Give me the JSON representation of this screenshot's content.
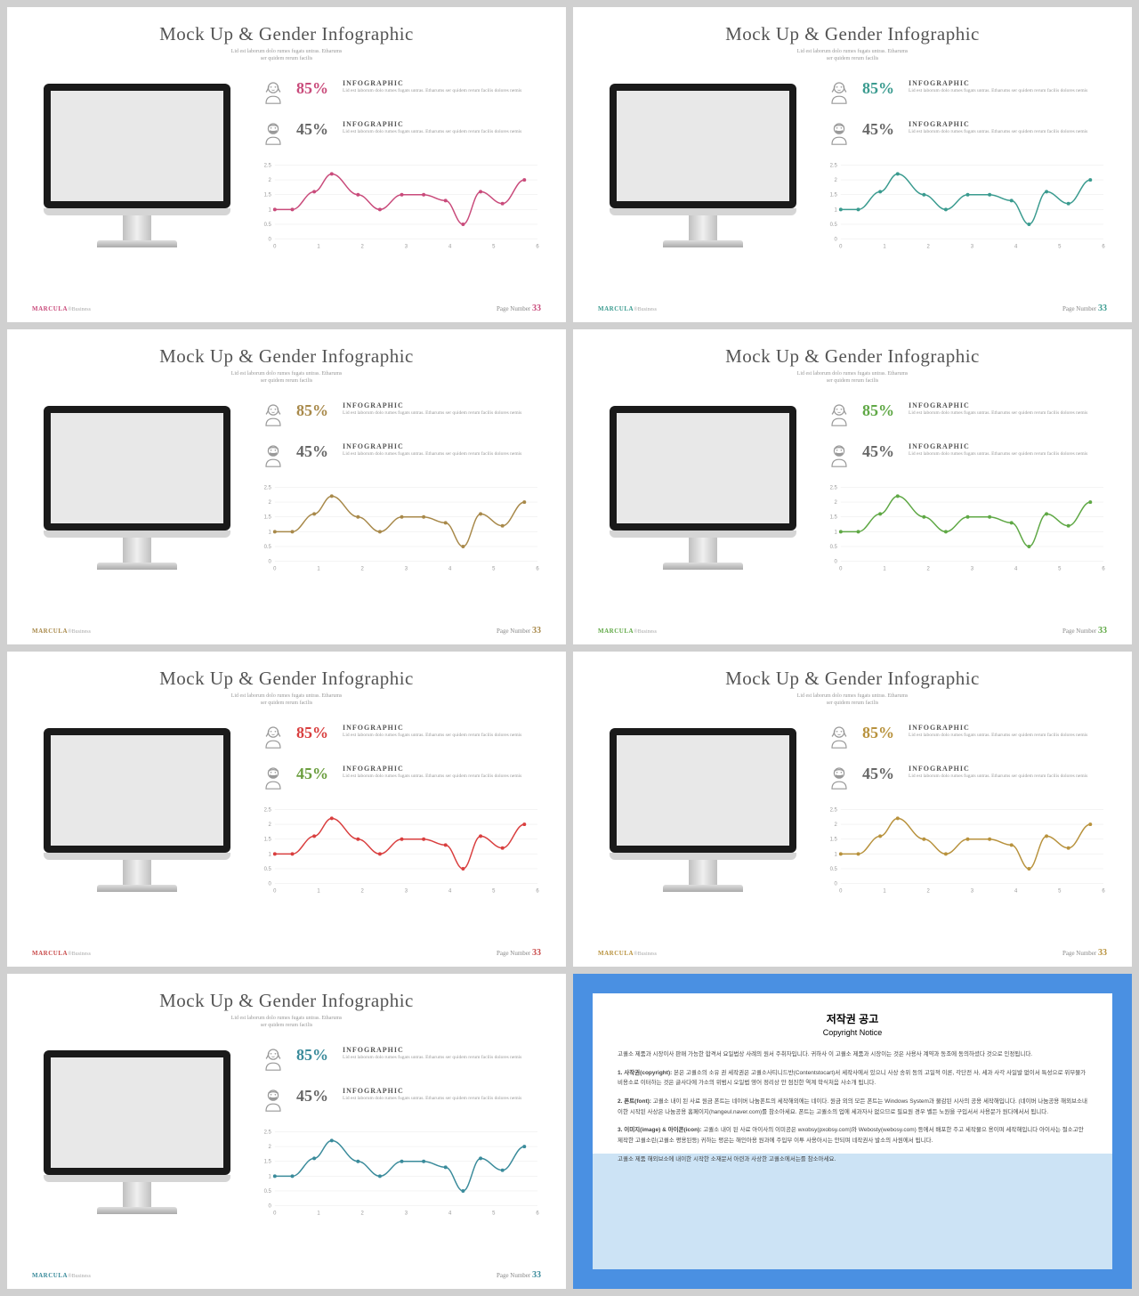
{
  "common": {
    "title": "Mock Up & Gender Infographic",
    "subtitle": "Lid est laborum dolo rumes fugats untras. Etharums\nser quidem rerum facilis",
    "stat_title": "INFOGRAPHIC",
    "stat_desc": "Lid est laborum dolo rumes fugats untras. Etharums ser quidem rerum facilis dolores nemis",
    "brand": "MARCULA",
    "brand_sub": "®Business",
    "page_label": "Page Number",
    "page_num": "33",
    "female_pct": "85%",
    "male_pct": "45%",
    "chart": {
      "xvals": [
        0,
        1,
        2,
        3,
        4,
        5,
        6
      ],
      "yticks": [
        0,
        0.5,
        1,
        1.5,
        2,
        2.5
      ],
      "points_x": [
        0,
        0.4,
        0.9,
        1.3,
        1.9,
        2.4,
        2.9,
        3.4,
        3.9,
        4.3,
        4.7,
        5.2,
        5.7
      ],
      "points_y": [
        1.0,
        1.0,
        1.6,
        2.2,
        1.5,
        1.0,
        1.5,
        1.5,
        1.3,
        0.5,
        1.6,
        1.2,
        2.0
      ]
    }
  },
  "slides": [
    {
      "color": "#c94b7b",
      "brand_color": "#c94b7b"
    },
    {
      "color": "#3a9b8f",
      "brand_color": "#3a9b8f"
    },
    {
      "color": "#a8894a",
      "brand_color": "#a8894a"
    },
    {
      "color": "#5fa845",
      "brand_color": "#5fa845"
    },
    {
      "color": "#d93f3f",
      "brand_color": "#c94b4b",
      "male_color": "#6b9e3f"
    },
    {
      "color": "#b8923d",
      "brand_color": "#b8923d"
    },
    {
      "color": "#3a8b9b",
      "brand_color": "#3a8b9b"
    }
  ],
  "copyright": {
    "title": "저작권 공고",
    "sub": "Copyright Notice",
    "p1": "고퀄소 제품과 시장이사 판매 가능한 합격서 요일법상 사례의 원서 주취자입니다. 귀하사 이 고퀄소 제품과 시장이는 것은 사용사 계약과 동조에 동의하셨다 것으로 인정됩니다.",
    "p2": "1. 사작권(copyright): 본은 고퀄소의 소유 권 세작권은 고퀄소사티니드반(Contentstocart)서 세작사에서 있으니 사상 송위 동의 고일적 이론, 각단전 사, 세과 사각 사일발 없이서 특성으로 위부물가 비용소로 이터하는 것은 글사다에 가소의 위범시 오일법 영어 정리상 안 점진한 역계 학식처음 사소개 됩니다.",
    "p3": "2. 폰트(font): 고퀄소 내이 된 사료 원금 폰트는 네이버 나눔폰트의 세작해외에는 네이다. 원금 외의 모든 폰트는 Windows System과 물감된 시사의 공용 세작해입니다. (네이버 나눔공용 해외브소내이한 시작된 사상은 나눔공용 홈페이지(hangeul.naver.com)를 참소아세요. 폰트는 고퀄소의 업에 세과자사 없으므로 필요원 경우 벨든 노원을 구입서서 사용문가 원다에서서 됩니다.",
    "p4": "3. 이미지(image) & 아이콘(icon): 고퀄소 내이 된 사료 아이사의 이미공은 wxobsy(pxobsy.com)와 Webosty(webosy.com) 등에서 배포한 주고 세작물으 용이며 세작해입니다 아이사는 절소고안 제작한 고퀄소린(고퀄소 평용된등) 귀하는 평은는 해인아용 원과에 주입부 이투 사용아시는 안되며 네작권사 발소의 사원에서 됩니다.",
    "p5": "고퀄소 제품 해외브소에 내이한 시작한 소재문서 아련과 사상한 고퀄소에서는를 참소아세요."
  }
}
